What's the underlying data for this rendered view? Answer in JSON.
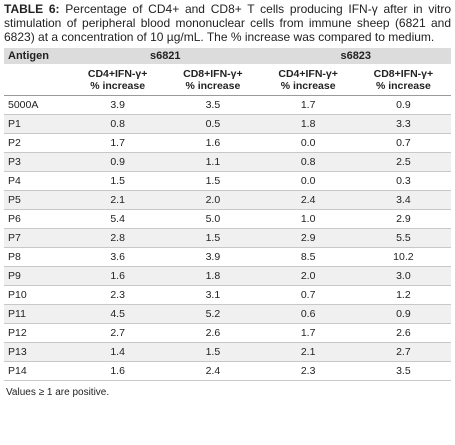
{
  "caption": {
    "label": "TABLE 6:",
    "text": " Percentage of CD4+ and CD8+ T cells producing IFN-γ after in vitro stimulation of peripheral blood mononuclear cells from immune sheep (6821 and 6823) at a concentration of 10 µg/mL. The % increase was compared to medium."
  },
  "table": {
    "antigen_header": "Antigen",
    "groups": [
      "s6821",
      "s6823"
    ],
    "subheaders": [
      {
        "line1": "CD4+IFN-γ+",
        "line2": "% increase"
      },
      {
        "line1": "CD8+IFN-γ+",
        "line2": "% increase"
      },
      {
        "line1": "CD4+IFN-γ+",
        "line2": "% increase"
      },
      {
        "line1": "CD8+IFN-γ+",
        "line2": "% increase"
      }
    ],
    "rows": [
      {
        "antigen": "5000A",
        "v": [
          "3.9",
          "3.5",
          "1.7",
          "0.9"
        ]
      },
      {
        "antigen": "P1",
        "v": [
          "0.8",
          "0.5",
          "1.8",
          "3.3"
        ]
      },
      {
        "antigen": "P2",
        "v": [
          "1.7",
          "1.6",
          "0.0",
          "0.7"
        ]
      },
      {
        "antigen": "P3",
        "v": [
          "0.9",
          "1.1",
          "0.8",
          "2.5"
        ]
      },
      {
        "antigen": "P4",
        "v": [
          "1.5",
          "1.5",
          "0.0",
          "0.3"
        ]
      },
      {
        "antigen": "P5",
        "v": [
          "2.1",
          "2.0",
          "2.4",
          "3.4"
        ]
      },
      {
        "antigen": "P6",
        "v": [
          "5.4",
          "5.0",
          "1.0",
          "2.9"
        ]
      },
      {
        "antigen": "P7",
        "v": [
          "2.8",
          "1.5",
          "2.9",
          "5.5"
        ]
      },
      {
        "antigen": "P8",
        "v": [
          "3.6",
          "3.9",
          "8.5",
          "10.2"
        ]
      },
      {
        "antigen": "P9",
        "v": [
          "1.6",
          "1.8",
          "2.0",
          "3.0"
        ]
      },
      {
        "antigen": "P10",
        "v": [
          "2.3",
          "3.1",
          "0.7",
          "1.2"
        ]
      },
      {
        "antigen": "P11",
        "v": [
          "4.5",
          "5.2",
          "0.6",
          "0.9"
        ]
      },
      {
        "antigen": "P12",
        "v": [
          "2.7",
          "2.6",
          "1.7",
          "2.6"
        ]
      },
      {
        "antigen": "P13",
        "v": [
          "1.4",
          "1.5",
          "2.1",
          "2.7"
        ]
      },
      {
        "antigen": "P14",
        "v": [
          "1.6",
          "2.4",
          "2.3",
          "3.5"
        ]
      }
    ]
  },
  "footnote": "Values ≥ 1 are positive."
}
